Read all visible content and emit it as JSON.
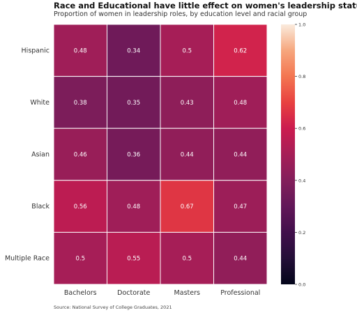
{
  "chart_data": {
    "type": "heatmap",
    "title": "Race and Educational have little effect on women's leadership status",
    "subtitle": "Proportion of women in leadership roles, by education level and racial group",
    "source": "Source: National Survey of College Graduates, 2021",
    "rows": [
      "Hispanic",
      "White",
      "Asian",
      "Black",
      "Multiple Race"
    ],
    "columns": [
      "Bachelors",
      "Doctorate",
      "Masters",
      "Professional"
    ],
    "values": [
      [
        0.48,
        0.34,
        0.5,
        0.62
      ],
      [
        0.38,
        0.35,
        0.43,
        0.48
      ],
      [
        0.46,
        0.36,
        0.44,
        0.44
      ],
      [
        0.56,
        0.48,
        0.67,
        0.47
      ],
      [
        0.5,
        0.55,
        0.5,
        0.44
      ]
    ],
    "colorbar": {
      "min": 0.0,
      "max": 1.0,
      "ticks": [
        "0.0",
        "0.2",
        "0.4",
        "0.6",
        "0.8",
        "1.0"
      ],
      "colormap": "rocket"
    },
    "xlabel": "",
    "ylabel": ""
  }
}
